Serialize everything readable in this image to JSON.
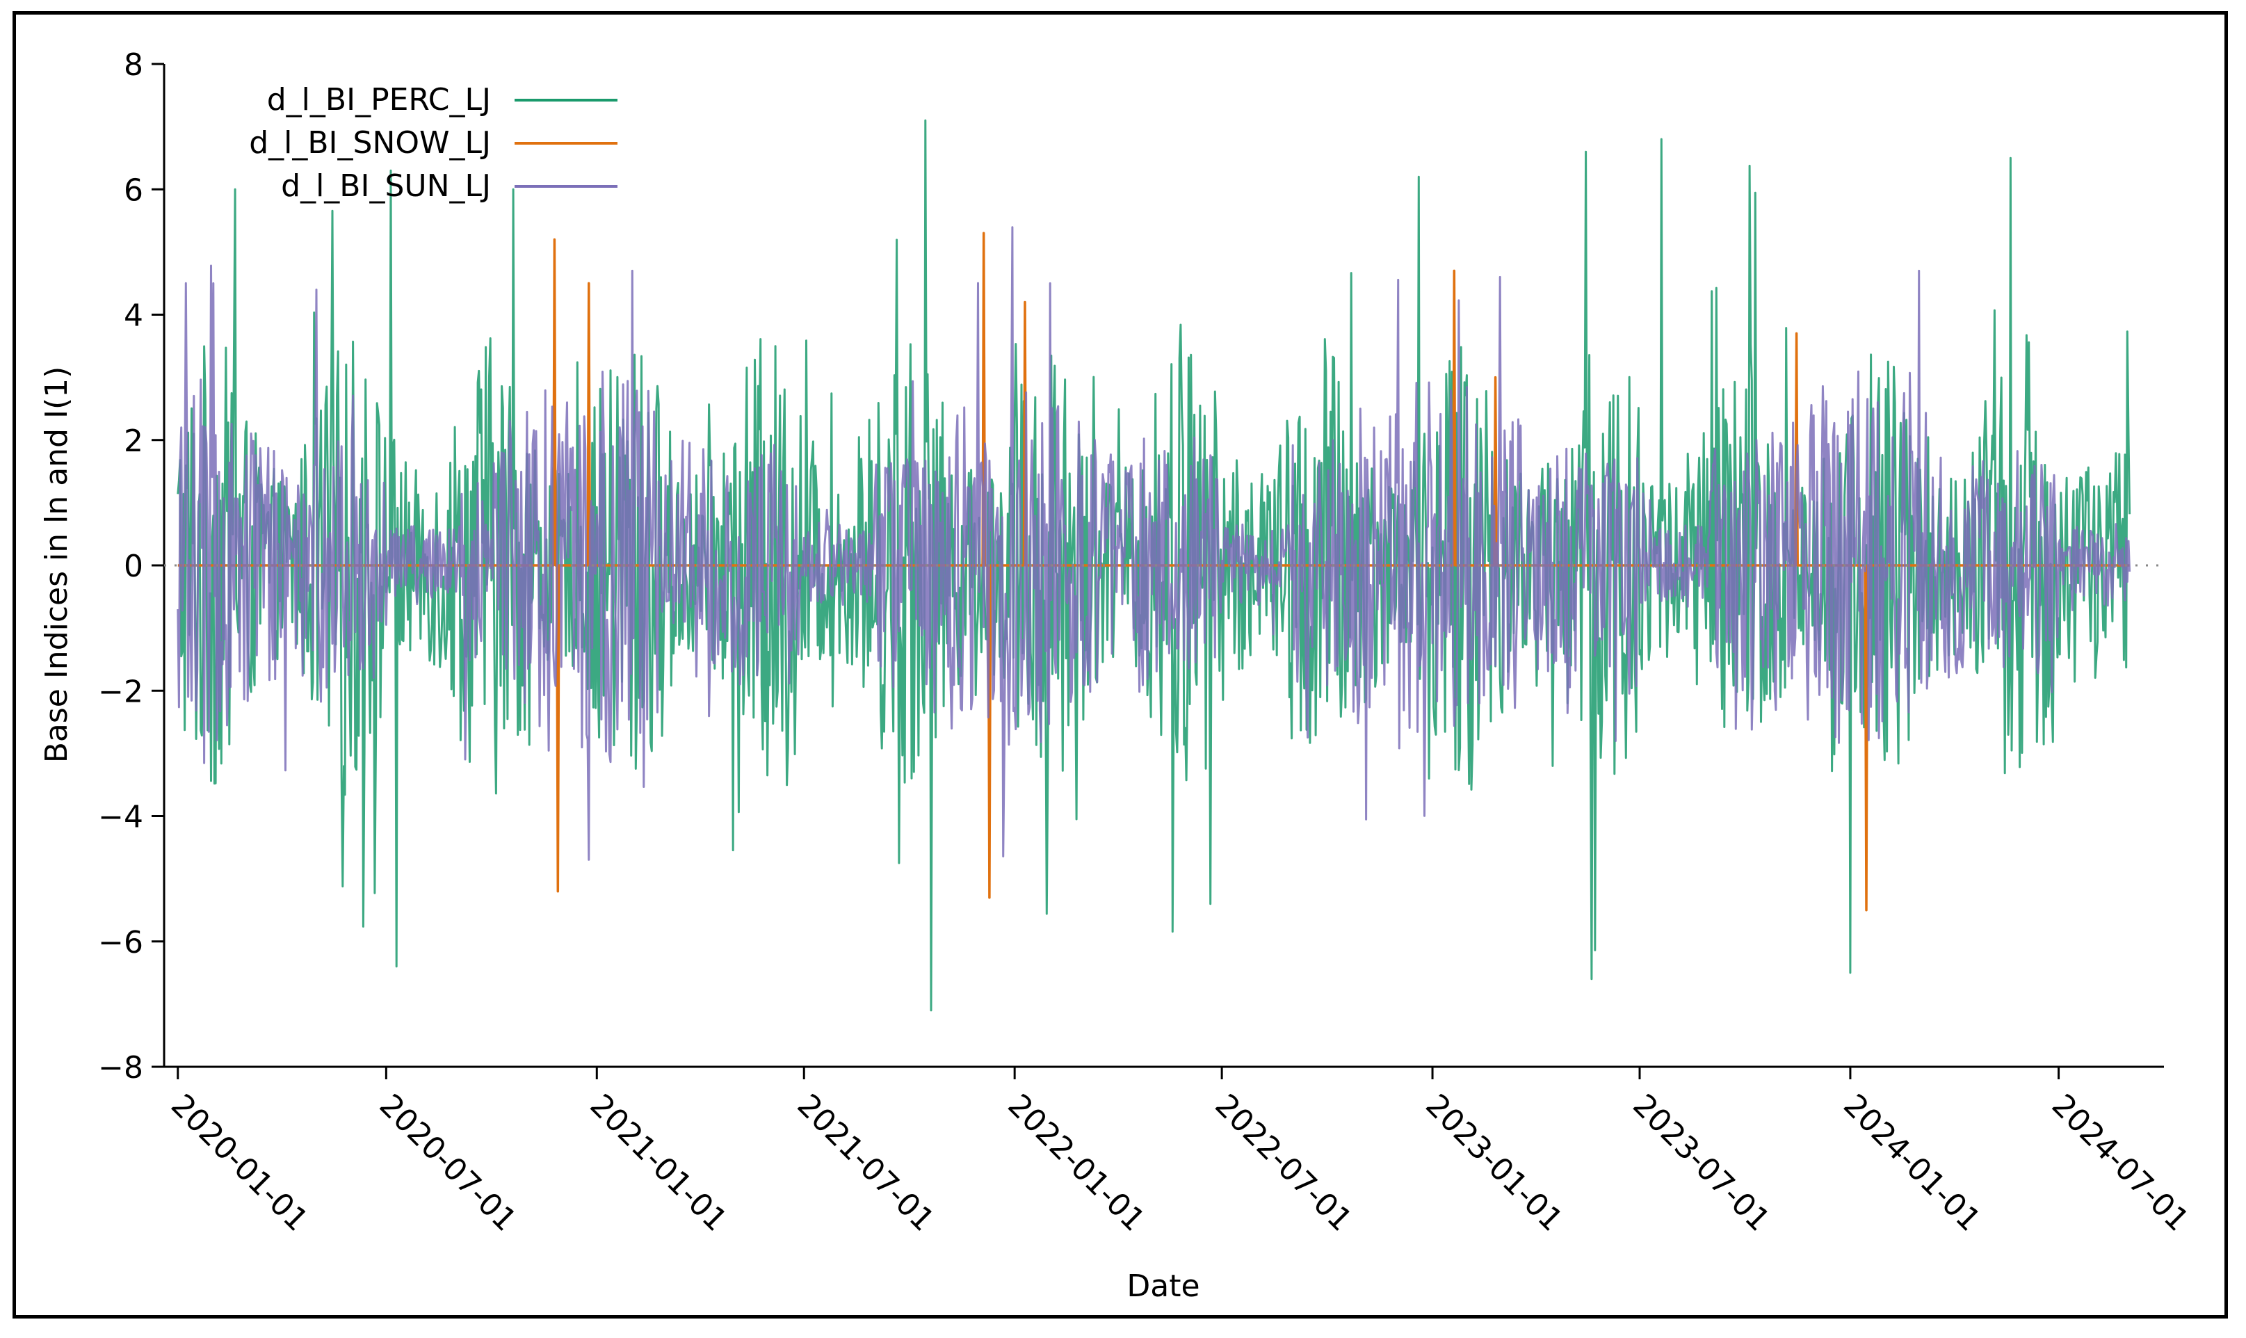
{
  "chart_data": {
    "type": "line",
    "xlabel": "Date",
    "ylabel": "Base Indices in ln and I(1)",
    "x_range": [
      "2019-12-20",
      "2024-10-01"
    ],
    "ylim": [
      -8,
      8
    ],
    "yticks": [
      -8,
      -6,
      -4,
      -2,
      0,
      2,
      4,
      6,
      8
    ],
    "xticks": [
      "2020-01-01",
      "2020-07-01",
      "2021-01-01",
      "2021-07-01",
      "2022-01-01",
      "2022-07-01",
      "2023-01-01",
      "2023-07-01",
      "2024-01-01",
      "2024-07-01"
    ],
    "zero_line": true,
    "grid": false,
    "legend_position": "top-left",
    "series": [
      {
        "name": "d_l_BI_PERC_LJ",
        "color": "#1a9a6c",
        "x_start": "2020-01-01",
        "x_end": "2024-09-01",
        "note_values": "daily first differences of logged base index; amplitude varies roughly between -7 and 7",
        "peaks": [
          {
            "x": "2020-02-20",
            "y": 6.0
          },
          {
            "x": "2020-07-05",
            "y": 6.3
          },
          {
            "x": "2020-10-20",
            "y": 6.0
          },
          {
            "x": "2021-10-15",
            "y": 7.1
          },
          {
            "x": "2021-10-20",
            "y": -7.1
          },
          {
            "x": "2020-07-10",
            "y": -6.4
          },
          {
            "x": "2022-12-20",
            "y": 6.2
          },
          {
            "x": "2023-05-15",
            "y": 6.6
          },
          {
            "x": "2023-07-20",
            "y": 6.8
          },
          {
            "x": "2023-05-20",
            "y": -6.6
          },
          {
            "x": "2024-05-20",
            "y": 6.5
          },
          {
            "x": "2024-01-01",
            "y": -6.5
          }
        ]
      },
      {
        "name": "d_l_BI_SNOW_LJ",
        "color": "#e0710f",
        "x_start": "2020-01-01",
        "x_end": "2024-09-01",
        "note_values": "mostly zero; sporadic winter spikes",
        "peaks": [
          {
            "x": "2020-11-25",
            "y": 5.2
          },
          {
            "x": "2020-11-28",
            "y": -5.2
          },
          {
            "x": "2020-12-25",
            "y": 4.5
          },
          {
            "x": "2021-12-05",
            "y": 5.3
          },
          {
            "x": "2021-12-10",
            "y": -5.3
          },
          {
            "x": "2022-01-10",
            "y": 4.2
          },
          {
            "x": "2023-01-20",
            "y": 4.7
          },
          {
            "x": "2023-02-25",
            "y": 3.0
          },
          {
            "x": "2023-11-15",
            "y": 3.7
          },
          {
            "x": "2024-01-15",
            "y": -5.5
          }
        ]
      },
      {
        "name": "d_l_BI_SUN_LJ",
        "color": "#7b6fb8",
        "x_start": "2020-01-01",
        "x_end": "2024-09-01",
        "note_values": "oscillates roughly between -4.7 and 4.7 with quiet periods in summer",
        "peaks": [
          {
            "x": "2020-02-01",
            "y": 4.5
          },
          {
            "x": "2020-05-01",
            "y": 4.4
          },
          {
            "x": "2021-02-01",
            "y": 4.7
          },
          {
            "x": "2022-02-01",
            "y": 4.5
          },
          {
            "x": "2023-03-01",
            "y": 4.6
          },
          {
            "x": "2024-03-01",
            "y": 4.7
          }
        ]
      }
    ]
  }
}
